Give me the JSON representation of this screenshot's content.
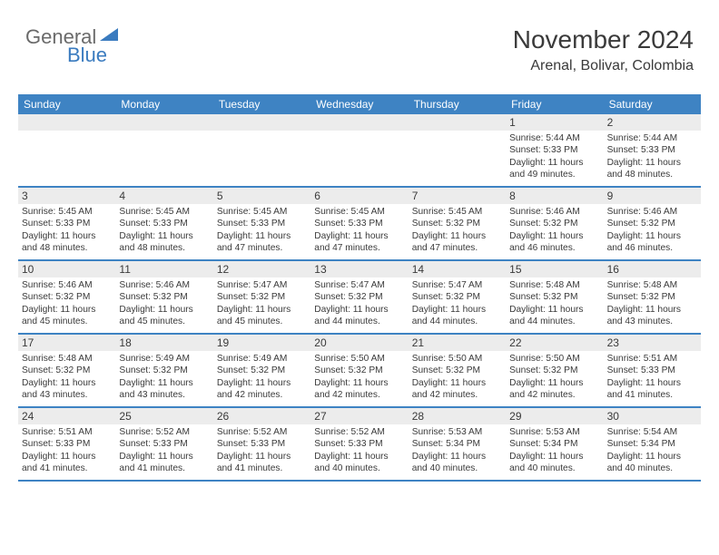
{
  "logo": {
    "text1": "General",
    "text2": "Blue"
  },
  "header": {
    "title": "November 2024",
    "location": "Arenal, Bolivar, Colombia"
  },
  "colors": {
    "header_bar": "#3e83c3",
    "daynum_bg": "#ececec",
    "text": "#3a3a3a",
    "logo_gray": "#6a6a6a",
    "logo_blue": "#3a7bbf"
  },
  "weekdays": [
    "Sunday",
    "Monday",
    "Tuesday",
    "Wednesday",
    "Thursday",
    "Friday",
    "Saturday"
  ],
  "weeks": [
    [
      {
        "n": "",
        "lines": []
      },
      {
        "n": "",
        "lines": []
      },
      {
        "n": "",
        "lines": []
      },
      {
        "n": "",
        "lines": []
      },
      {
        "n": "",
        "lines": []
      },
      {
        "n": "1",
        "lines": [
          "Sunrise: 5:44 AM",
          "Sunset: 5:33 PM",
          "Daylight: 11 hours",
          "and 49 minutes."
        ]
      },
      {
        "n": "2",
        "lines": [
          "Sunrise: 5:44 AM",
          "Sunset: 5:33 PM",
          "Daylight: 11 hours",
          "and 48 minutes."
        ]
      }
    ],
    [
      {
        "n": "3",
        "lines": [
          "Sunrise: 5:45 AM",
          "Sunset: 5:33 PM",
          "Daylight: 11 hours",
          "and 48 minutes."
        ]
      },
      {
        "n": "4",
        "lines": [
          "Sunrise: 5:45 AM",
          "Sunset: 5:33 PM",
          "Daylight: 11 hours",
          "and 48 minutes."
        ]
      },
      {
        "n": "5",
        "lines": [
          "Sunrise: 5:45 AM",
          "Sunset: 5:33 PM",
          "Daylight: 11 hours",
          "and 47 minutes."
        ]
      },
      {
        "n": "6",
        "lines": [
          "Sunrise: 5:45 AM",
          "Sunset: 5:33 PM",
          "Daylight: 11 hours",
          "and 47 minutes."
        ]
      },
      {
        "n": "7",
        "lines": [
          "Sunrise: 5:45 AM",
          "Sunset: 5:32 PM",
          "Daylight: 11 hours",
          "and 47 minutes."
        ]
      },
      {
        "n": "8",
        "lines": [
          "Sunrise: 5:46 AM",
          "Sunset: 5:32 PM",
          "Daylight: 11 hours",
          "and 46 minutes."
        ]
      },
      {
        "n": "9",
        "lines": [
          "Sunrise: 5:46 AM",
          "Sunset: 5:32 PM",
          "Daylight: 11 hours",
          "and 46 minutes."
        ]
      }
    ],
    [
      {
        "n": "10",
        "lines": [
          "Sunrise: 5:46 AM",
          "Sunset: 5:32 PM",
          "Daylight: 11 hours",
          "and 45 minutes."
        ]
      },
      {
        "n": "11",
        "lines": [
          "Sunrise: 5:46 AM",
          "Sunset: 5:32 PM",
          "Daylight: 11 hours",
          "and 45 minutes."
        ]
      },
      {
        "n": "12",
        "lines": [
          "Sunrise: 5:47 AM",
          "Sunset: 5:32 PM",
          "Daylight: 11 hours",
          "and 45 minutes."
        ]
      },
      {
        "n": "13",
        "lines": [
          "Sunrise: 5:47 AM",
          "Sunset: 5:32 PM",
          "Daylight: 11 hours",
          "and 44 minutes."
        ]
      },
      {
        "n": "14",
        "lines": [
          "Sunrise: 5:47 AM",
          "Sunset: 5:32 PM",
          "Daylight: 11 hours",
          "and 44 minutes."
        ]
      },
      {
        "n": "15",
        "lines": [
          "Sunrise: 5:48 AM",
          "Sunset: 5:32 PM",
          "Daylight: 11 hours",
          "and 44 minutes."
        ]
      },
      {
        "n": "16",
        "lines": [
          "Sunrise: 5:48 AM",
          "Sunset: 5:32 PM",
          "Daylight: 11 hours",
          "and 43 minutes."
        ]
      }
    ],
    [
      {
        "n": "17",
        "lines": [
          "Sunrise: 5:48 AM",
          "Sunset: 5:32 PM",
          "Daylight: 11 hours",
          "and 43 minutes."
        ]
      },
      {
        "n": "18",
        "lines": [
          "Sunrise: 5:49 AM",
          "Sunset: 5:32 PM",
          "Daylight: 11 hours",
          "and 43 minutes."
        ]
      },
      {
        "n": "19",
        "lines": [
          "Sunrise: 5:49 AM",
          "Sunset: 5:32 PM",
          "Daylight: 11 hours",
          "and 42 minutes."
        ]
      },
      {
        "n": "20",
        "lines": [
          "Sunrise: 5:50 AM",
          "Sunset: 5:32 PM",
          "Daylight: 11 hours",
          "and 42 minutes."
        ]
      },
      {
        "n": "21",
        "lines": [
          "Sunrise: 5:50 AM",
          "Sunset: 5:32 PM",
          "Daylight: 11 hours",
          "and 42 minutes."
        ]
      },
      {
        "n": "22",
        "lines": [
          "Sunrise: 5:50 AM",
          "Sunset: 5:32 PM",
          "Daylight: 11 hours",
          "and 42 minutes."
        ]
      },
      {
        "n": "23",
        "lines": [
          "Sunrise: 5:51 AM",
          "Sunset: 5:33 PM",
          "Daylight: 11 hours",
          "and 41 minutes."
        ]
      }
    ],
    [
      {
        "n": "24",
        "lines": [
          "Sunrise: 5:51 AM",
          "Sunset: 5:33 PM",
          "Daylight: 11 hours",
          "and 41 minutes."
        ]
      },
      {
        "n": "25",
        "lines": [
          "Sunrise: 5:52 AM",
          "Sunset: 5:33 PM",
          "Daylight: 11 hours",
          "and 41 minutes."
        ]
      },
      {
        "n": "26",
        "lines": [
          "Sunrise: 5:52 AM",
          "Sunset: 5:33 PM",
          "Daylight: 11 hours",
          "and 41 minutes."
        ]
      },
      {
        "n": "27",
        "lines": [
          "Sunrise: 5:52 AM",
          "Sunset: 5:33 PM",
          "Daylight: 11 hours",
          "and 40 minutes."
        ]
      },
      {
        "n": "28",
        "lines": [
          "Sunrise: 5:53 AM",
          "Sunset: 5:34 PM",
          "Daylight: 11 hours",
          "and 40 minutes."
        ]
      },
      {
        "n": "29",
        "lines": [
          "Sunrise: 5:53 AM",
          "Sunset: 5:34 PM",
          "Daylight: 11 hours",
          "and 40 minutes."
        ]
      },
      {
        "n": "30",
        "lines": [
          "Sunrise: 5:54 AM",
          "Sunset: 5:34 PM",
          "Daylight: 11 hours",
          "and 40 minutes."
        ]
      }
    ]
  ]
}
